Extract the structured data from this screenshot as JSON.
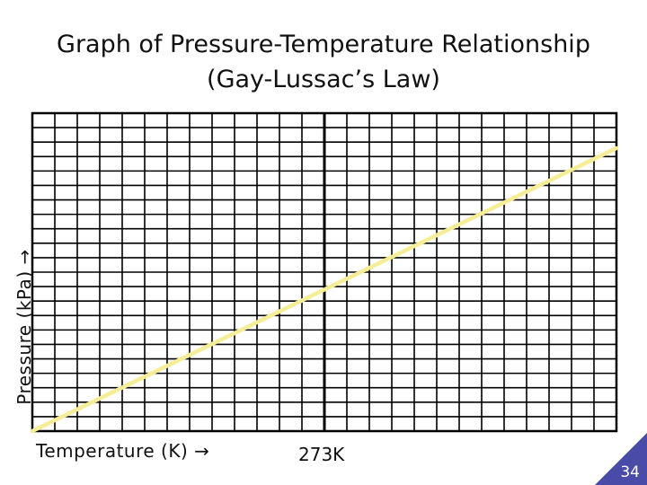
{
  "slide": {
    "title_line1": "Graph of Pressure-Temperature Relationship",
    "title_line2": "(Gay-Lussac’s Law)",
    "page_number": "34"
  },
  "chart_data": {
    "type": "line",
    "xlabel": "Temperature (K) →",
    "ylabel": "Pressure (kPa) →",
    "x_ticks": [
      {
        "value": 273,
        "label": "273K"
      }
    ],
    "xlim": [
      0,
      546
    ],
    "ylim": [
      0,
      1
    ],
    "grid": true,
    "series": [
      {
        "x": [
          0,
          546
        ],
        "y": [
          0,
          0.89
        ],
        "color": "#f5ee96"
      }
    ],
    "colors": {
      "grid": "#000000",
      "line": "#f5ee96"
    }
  }
}
